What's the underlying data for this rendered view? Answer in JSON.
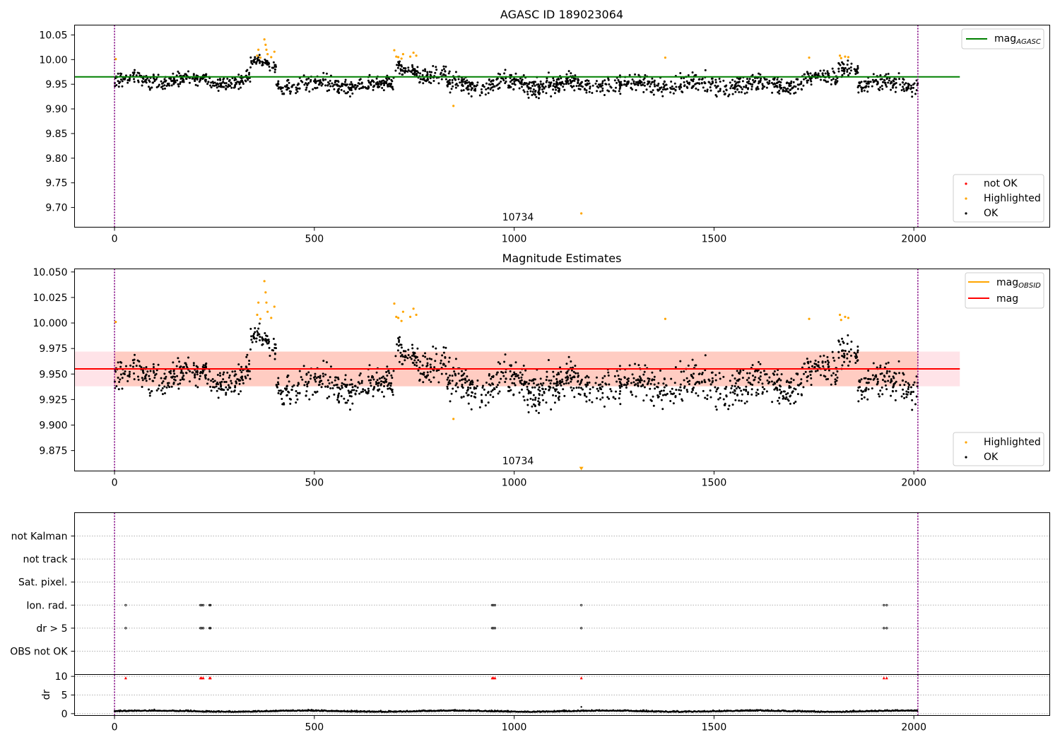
{
  "chart_data": [
    {
      "type": "scatter",
      "title": "AGASC ID 189023064",
      "annotation": "10734",
      "xlim": [
        -100,
        2340
      ],
      "ylim": [
        9.66,
        10.07
      ],
      "xticks": [
        "0",
        "500",
        "1000",
        "1500",
        "2000"
      ],
      "yticks": [
        "9.70",
        "9.75",
        "9.80",
        "9.85",
        "9.90",
        "9.95",
        "10.00",
        "10.05"
      ],
      "vlines_x": [
        0,
        2010
      ],
      "mag_agasc": 9.965,
      "legend_lines": [
        {
          "label": "mag",
          "sub": "AGASC",
          "color": "#008000"
        }
      ],
      "legend_points": [
        {
          "label": "not OK",
          "color": "#ff0000"
        },
        {
          "label": "Highlighted",
          "color": "#ffa500"
        },
        {
          "label": "OK",
          "color": "#000000"
        }
      ],
      "highlighted_points": [
        [
          3,
          10.001
        ],
        [
          357,
          10.008
        ],
        [
          360,
          10.02
        ],
        [
          365,
          10.004
        ],
        [
          375,
          10.041
        ],
        [
          378,
          10.03
        ],
        [
          380,
          10.02
        ],
        [
          383,
          10.011
        ],
        [
          392,
          10.005
        ],
        [
          400,
          10.016
        ],
        [
          700,
          10.019
        ],
        [
          705,
          10.006
        ],
        [
          710,
          10.005
        ],
        [
          718,
          10.002
        ],
        [
          722,
          10.011
        ],
        [
          740,
          10.006
        ],
        [
          748,
          10.014
        ],
        [
          755,
          10.008
        ],
        [
          848,
          9.906
        ],
        [
          1378,
          10.004
        ],
        [
          1738,
          10.004
        ],
        [
          1815,
          10.008
        ],
        [
          1818,
          10.003
        ],
        [
          1828,
          10.006
        ],
        [
          1836,
          10.005
        ]
      ],
      "outlier_points": [
        [
          1168,
          9.688
        ]
      ],
      "ok_points_note": "dense black points along 9.91–10.00",
      "ok_segments": [
        {
          "x0": 0,
          "x1": 340,
          "base": 9.958,
          "spread": 0.028
        },
        {
          "x0": 340,
          "x1": 405,
          "base": 9.99,
          "spread": 0.02
        },
        {
          "x0": 405,
          "x1": 700,
          "base": 9.948,
          "spread": 0.03
        },
        {
          "x0": 700,
          "x1": 760,
          "base": 9.985,
          "spread": 0.025
        },
        {
          "x0": 760,
          "x1": 830,
          "base": 9.965,
          "spread": 0.03
        },
        {
          "x0": 830,
          "x1": 1720,
          "base": 9.95,
          "spread": 0.035
        },
        {
          "x0": 1720,
          "x1": 1810,
          "base": 9.96,
          "spread": 0.03
        },
        {
          "x0": 1810,
          "x1": 1860,
          "base": 9.985,
          "spread": 0.025
        },
        {
          "x0": 1860,
          "x1": 2010,
          "base": 9.95,
          "spread": 0.03
        }
      ]
    },
    {
      "type": "scatter",
      "title": "Magnitude Estimates",
      "annotation": "10734",
      "xlim": [
        -100,
        2340
      ],
      "ylim": [
        9.855,
        10.053
      ],
      "xticks": [
        "0",
        "500",
        "1000",
        "1500",
        "2000"
      ],
      "yticks": [
        "9.875",
        "9.900",
        "9.925",
        "9.950",
        "9.975",
        "10.000",
        "10.025",
        "10.050"
      ],
      "vlines_x": [
        0,
        2010
      ],
      "mag_obsid": 9.955,
      "mag": 9.955,
      "mag_band": [
        9.938,
        9.972
      ],
      "legend_lines": [
        {
          "label": "mag",
          "sub": "OBSID",
          "color": "#ffa500"
        },
        {
          "label": "mag",
          "sub": "",
          "color": "#ff0000"
        }
      ],
      "legend_points": [
        {
          "label": "Highlighted",
          "color": "#ffa500"
        },
        {
          "label": "OK",
          "color": "#000000"
        }
      ],
      "offscale_marker": [
        1168,
        9.857
      ]
    },
    {
      "type": "scatter",
      "title": "",
      "xlim": [
        -100,
        2340
      ],
      "xticks": [
        "0",
        "500",
        "1000",
        "1500",
        "2000"
      ],
      "categories": [
        "not Kalman",
        "not track",
        "Sat. pixel.",
        "Ion. rad.",
        "dr > 5",
        "OBS not OK"
      ],
      "flag_x": [
        28,
        215,
        218,
        222,
        238,
        240,
        945,
        948,
        952,
        1168,
        1925,
        1932
      ],
      "dr_ylabel": "dr",
      "dr_yticks": [
        "0",
        "5",
        "10"
      ],
      "dr_ylim": [
        -0.5,
        10.5
      ],
      "dr_red_markers_x": [
        28,
        215,
        218,
        222,
        238,
        240,
        945,
        948,
        952,
        1168,
        1925,
        1932
      ],
      "dr_baseline": 0.4
    }
  ]
}
